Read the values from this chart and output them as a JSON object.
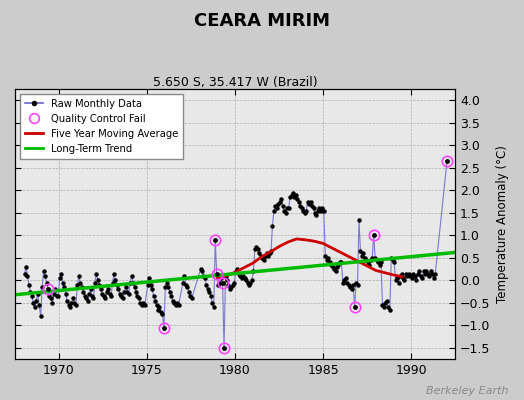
{
  "title": "CEARA MIRIM",
  "subtitle": "5.650 S, 35.417 W (Brazil)",
  "ylabel": "Temperature Anomaly (°C)",
  "watermark": "Berkeley Earth",
  "xlim": [
    1967.5,
    1992.5
  ],
  "ylim": [
    -1.75,
    4.25
  ],
  "yticks": [
    -1.5,
    -1.0,
    -0.5,
    0.0,
    0.5,
    1.0,
    1.5,
    2.0,
    2.5,
    3.0,
    3.5,
    4.0
  ],
  "xticks": [
    1970,
    1975,
    1980,
    1985,
    1990
  ],
  "bg_color": "#cccccc",
  "plot_bg": "#e8e8e8",
  "raw_color": "#6666cc",
  "raw_marker_color": "#000000",
  "ma_color": "#cc0000",
  "trend_color": "#00bb00",
  "qc_color": "#ff44ff",
  "raw_monthly": [
    [
      1968.042,
      0.15
    ],
    [
      1968.125,
      0.3
    ],
    [
      1968.208,
      0.1
    ],
    [
      1968.292,
      -0.1
    ],
    [
      1968.375,
      -0.25
    ],
    [
      1968.458,
      -0.35
    ],
    [
      1968.542,
      -0.5
    ],
    [
      1968.625,
      -0.6
    ],
    [
      1968.708,
      -0.45
    ],
    [
      1968.792,
      -0.3
    ],
    [
      1968.875,
      -0.55
    ],
    [
      1968.958,
      -0.8
    ],
    [
      1969.042,
      -0.15
    ],
    [
      1969.125,
      0.2
    ],
    [
      1969.208,
      0.1
    ],
    [
      1969.292,
      -0.05
    ],
    [
      1969.375,
      -0.2
    ],
    [
      1969.458,
      -0.35
    ],
    [
      1969.542,
      -0.4
    ],
    [
      1969.625,
      -0.5
    ],
    [
      1969.708,
      -0.3
    ],
    [
      1969.792,
      -0.2
    ],
    [
      1969.875,
      -0.35
    ],
    [
      1969.958,
      -0.35
    ],
    [
      1970.042,
      0.05
    ],
    [
      1970.125,
      0.15
    ],
    [
      1970.208,
      -0.05
    ],
    [
      1970.292,
      -0.15
    ],
    [
      1970.375,
      -0.3
    ],
    [
      1970.458,
      -0.45
    ],
    [
      1970.542,
      -0.55
    ],
    [
      1970.625,
      -0.6
    ],
    [
      1970.708,
      -0.5
    ],
    [
      1970.792,
      -0.4
    ],
    [
      1970.875,
      -0.5
    ],
    [
      1970.958,
      -0.55
    ],
    [
      1971.042,
      -0.1
    ],
    [
      1971.125,
      0.1
    ],
    [
      1971.208,
      -0.05
    ],
    [
      1971.292,
      -0.15
    ],
    [
      1971.375,
      -0.25
    ],
    [
      1971.458,
      -0.35
    ],
    [
      1971.542,
      -0.4
    ],
    [
      1971.625,
      -0.45
    ],
    [
      1971.708,
      -0.3
    ],
    [
      1971.792,
      -0.2
    ],
    [
      1971.875,
      -0.35
    ],
    [
      1971.958,
      -0.4
    ],
    [
      1972.042,
      -0.05
    ],
    [
      1972.125,
      0.15
    ],
    [
      1972.208,
      0.0
    ],
    [
      1972.292,
      -0.1
    ],
    [
      1972.375,
      -0.2
    ],
    [
      1972.458,
      -0.3
    ],
    [
      1972.542,
      -0.35
    ],
    [
      1972.625,
      -0.4
    ],
    [
      1972.708,
      -0.25
    ],
    [
      1972.792,
      -0.2
    ],
    [
      1972.875,
      -0.3
    ],
    [
      1972.958,
      -0.35
    ],
    [
      1973.042,
      -0.05
    ],
    [
      1973.125,
      0.15
    ],
    [
      1973.208,
      0.0
    ],
    [
      1973.292,
      -0.1
    ],
    [
      1973.375,
      -0.2
    ],
    [
      1973.458,
      -0.3
    ],
    [
      1973.542,
      -0.35
    ],
    [
      1973.625,
      -0.4
    ],
    [
      1973.708,
      -0.25
    ],
    [
      1973.792,
      -0.15
    ],
    [
      1973.875,
      -0.25
    ],
    [
      1973.958,
      -0.3
    ],
    [
      1974.042,
      -0.05
    ],
    [
      1974.125,
      0.1
    ],
    [
      1974.208,
      -0.05
    ],
    [
      1974.292,
      -0.15
    ],
    [
      1974.375,
      -0.25
    ],
    [
      1974.458,
      -0.35
    ],
    [
      1974.542,
      -0.4
    ],
    [
      1974.625,
      -0.5
    ],
    [
      1974.708,
      -0.55
    ],
    [
      1974.792,
      -0.5
    ],
    [
      1974.875,
      -0.55
    ],
    [
      1975.042,
      -0.1
    ],
    [
      1975.125,
      0.05
    ],
    [
      1975.208,
      -0.1
    ],
    [
      1975.292,
      -0.2
    ],
    [
      1975.375,
      -0.35
    ],
    [
      1975.458,
      -0.45
    ],
    [
      1975.542,
      -0.55
    ],
    [
      1975.625,
      -0.65
    ],
    [
      1975.708,
      -0.6
    ],
    [
      1975.792,
      -0.7
    ],
    [
      1975.875,
      -0.75
    ],
    [
      1975.958,
      -1.05
    ],
    [
      1976.042,
      -0.15
    ],
    [
      1976.125,
      -0.05
    ],
    [
      1976.208,
      -0.15
    ],
    [
      1976.292,
      -0.25
    ],
    [
      1976.375,
      -0.35
    ],
    [
      1976.458,
      -0.45
    ],
    [
      1976.542,
      -0.5
    ],
    [
      1976.625,
      -0.55
    ],
    [
      1976.708,
      -0.5
    ],
    [
      1976.792,
      -0.55
    ],
    [
      1977.042,
      -0.05
    ],
    [
      1977.125,
      0.1
    ],
    [
      1977.208,
      -0.1
    ],
    [
      1977.292,
      -0.15
    ],
    [
      1977.375,
      -0.25
    ],
    [
      1977.458,
      -0.35
    ],
    [
      1977.542,
      -0.4
    ],
    [
      1978.042,
      0.25
    ],
    [
      1978.125,
      0.2
    ],
    [
      1978.208,
      0.1
    ],
    [
      1978.292,
      0.05
    ],
    [
      1978.375,
      -0.1
    ],
    [
      1978.458,
      -0.2
    ],
    [
      1978.542,
      -0.25
    ],
    [
      1978.625,
      -0.35
    ],
    [
      1978.708,
      -0.5
    ],
    [
      1978.792,
      -0.6
    ],
    [
      1978.875,
      0.9
    ],
    [
      1978.958,
      0.15
    ],
    [
      1979.042,
      -0.1
    ],
    [
      1979.125,
      -0.05
    ],
    [
      1979.208,
      0.05
    ],
    [
      1979.292,
      -0.05
    ],
    [
      1979.375,
      -1.5
    ],
    [
      1979.458,
      0.1
    ],
    [
      1979.542,
      0.0
    ],
    [
      1979.625,
      -0.1
    ],
    [
      1979.708,
      -0.2
    ],
    [
      1979.792,
      -0.15
    ],
    [
      1979.875,
      -0.1
    ],
    [
      1979.958,
      -0.05
    ],
    [
      1980.042,
      0.2
    ],
    [
      1980.125,
      0.25
    ],
    [
      1980.208,
      0.15
    ],
    [
      1980.292,
      0.1
    ],
    [
      1980.375,
      0.05
    ],
    [
      1980.458,
      0.1
    ],
    [
      1980.542,
      0.05
    ],
    [
      1980.625,
      0.0
    ],
    [
      1980.708,
      -0.05
    ],
    [
      1980.792,
      -0.1
    ],
    [
      1980.875,
      -0.05
    ],
    [
      1980.958,
      0.0
    ],
    [
      1981.042,
      0.2
    ],
    [
      1981.125,
      0.7
    ],
    [
      1981.208,
      0.75
    ],
    [
      1981.292,
      0.7
    ],
    [
      1981.375,
      0.6
    ],
    [
      1981.458,
      0.55
    ],
    [
      1981.542,
      0.5
    ],
    [
      1981.625,
      0.45
    ],
    [
      1981.708,
      0.55
    ],
    [
      1981.792,
      0.6
    ],
    [
      1981.875,
      0.55
    ],
    [
      1981.958,
      0.6
    ],
    [
      1982.042,
      0.65
    ],
    [
      1982.125,
      1.2
    ],
    [
      1982.208,
      1.55
    ],
    [
      1982.292,
      1.65
    ],
    [
      1982.375,
      1.6
    ],
    [
      1982.458,
      1.7
    ],
    [
      1982.542,
      1.75
    ],
    [
      1982.625,
      1.8
    ],
    [
      1982.708,
      1.65
    ],
    [
      1982.792,
      1.55
    ],
    [
      1982.875,
      1.5
    ],
    [
      1982.958,
      1.6
    ],
    [
      1983.042,
      1.6
    ],
    [
      1983.125,
      1.85
    ],
    [
      1983.208,
      1.9
    ],
    [
      1983.292,
      1.95
    ],
    [
      1983.375,
      1.85
    ],
    [
      1983.458,
      1.9
    ],
    [
      1983.542,
      1.8
    ],
    [
      1983.625,
      1.75
    ],
    [
      1983.708,
      1.65
    ],
    [
      1983.792,
      1.6
    ],
    [
      1983.875,
      1.55
    ],
    [
      1983.958,
      1.5
    ],
    [
      1984.042,
      1.55
    ],
    [
      1984.125,
      1.75
    ],
    [
      1984.208,
      1.7
    ],
    [
      1984.292,
      1.75
    ],
    [
      1984.375,
      1.65
    ],
    [
      1984.458,
      1.6
    ],
    [
      1984.542,
      1.5
    ],
    [
      1984.625,
      1.45
    ],
    [
      1984.708,
      1.55
    ],
    [
      1984.792,
      1.6
    ],
    [
      1984.875,
      1.55
    ],
    [
      1984.958,
      1.6
    ],
    [
      1985.042,
      1.55
    ],
    [
      1985.125,
      0.55
    ],
    [
      1985.208,
      0.45
    ],
    [
      1985.292,
      0.5
    ],
    [
      1985.375,
      0.4
    ],
    [
      1985.458,
      0.35
    ],
    [
      1985.542,
      0.3
    ],
    [
      1985.625,
      0.25
    ],
    [
      1985.708,
      0.2
    ],
    [
      1985.792,
      0.3
    ],
    [
      1985.875,
      0.35
    ],
    [
      1985.958,
      0.4
    ],
    [
      1986.042,
      0.4
    ],
    [
      1986.125,
      -0.05
    ],
    [
      1986.208,
      0.0
    ],
    [
      1986.292,
      0.05
    ],
    [
      1986.375,
      -0.05
    ],
    [
      1986.458,
      -0.1
    ],
    [
      1986.542,
      -0.15
    ],
    [
      1986.625,
      -0.2
    ],
    [
      1986.708,
      -0.1
    ],
    [
      1986.792,
      -0.6
    ],
    [
      1986.875,
      -0.05
    ],
    [
      1986.958,
      -0.1
    ],
    [
      1987.042,
      1.35
    ],
    [
      1987.125,
      0.65
    ],
    [
      1987.208,
      0.55
    ],
    [
      1987.292,
      0.6
    ],
    [
      1987.375,
      0.5
    ],
    [
      1987.458,
      0.45
    ],
    [
      1987.542,
      0.4
    ],
    [
      1987.625,
      0.35
    ],
    [
      1987.708,
      0.45
    ],
    [
      1987.792,
      0.5
    ],
    [
      1987.875,
      1.0
    ],
    [
      1987.958,
      0.5
    ],
    [
      1988.042,
      0.45
    ],
    [
      1988.125,
      0.4
    ],
    [
      1988.208,
      0.35
    ],
    [
      1988.292,
      0.4
    ],
    [
      1988.375,
      -0.55
    ],
    [
      1988.458,
      -0.6
    ],
    [
      1988.542,
      -0.5
    ],
    [
      1988.625,
      -0.45
    ],
    [
      1988.708,
      -0.6
    ],
    [
      1988.792,
      -0.65
    ],
    [
      1988.875,
      0.5
    ],
    [
      1988.958,
      0.45
    ],
    [
      1989.042,
      0.4
    ],
    [
      1989.125,
      -0.0
    ],
    [
      1989.208,
      0.05
    ],
    [
      1989.292,
      -0.05
    ],
    [
      1989.375,
      0.1
    ],
    [
      1989.458,
      0.15
    ],
    [
      1989.542,
      0.05
    ],
    [
      1989.625,
      0.0
    ],
    [
      1989.708,
      0.15
    ],
    [
      1989.792,
      0.1
    ],
    [
      1989.875,
      0.15
    ],
    [
      1989.958,
      0.1
    ],
    [
      1990.042,
      0.05
    ],
    [
      1990.125,
      0.15
    ],
    [
      1990.208,
      0.1
    ],
    [
      1990.292,
      0.0
    ],
    [
      1990.375,
      0.15
    ],
    [
      1990.458,
      0.2
    ],
    [
      1990.542,
      0.1
    ],
    [
      1990.625,
      0.05
    ],
    [
      1990.708,
      0.2
    ],
    [
      1990.792,
      0.15
    ],
    [
      1990.875,
      0.2
    ],
    [
      1990.958,
      0.15
    ],
    [
      1991.042,
      0.1
    ],
    [
      1991.125,
      0.2
    ],
    [
      1991.208,
      0.15
    ],
    [
      1991.292,
      0.05
    ],
    [
      1991.375,
      0.15
    ],
    [
      1992.042,
      2.65
    ]
  ],
  "qc_fail": [
    [
      1969.375,
      -0.2
    ],
    [
      1975.958,
      -1.05
    ],
    [
      1978.875,
      0.9
    ],
    [
      1978.958,
      0.15
    ],
    [
      1979.292,
      -0.05
    ],
    [
      1979.375,
      -1.5
    ],
    [
      1986.792,
      -0.6
    ],
    [
      1987.875,
      1.0
    ],
    [
      1992.042,
      2.65
    ]
  ],
  "moving_avg": [
    [
      1979.0,
      0.05
    ],
    [
      1979.5,
      0.1
    ],
    [
      1980.0,
      0.18
    ],
    [
      1980.5,
      0.28
    ],
    [
      1981.0,
      0.38
    ],
    [
      1981.5,
      0.52
    ],
    [
      1982.0,
      0.63
    ],
    [
      1982.5,
      0.75
    ],
    [
      1983.0,
      0.85
    ],
    [
      1983.5,
      0.92
    ],
    [
      1984.0,
      0.9
    ],
    [
      1984.5,
      0.87
    ],
    [
      1985.0,
      0.82
    ],
    [
      1985.5,
      0.72
    ],
    [
      1986.0,
      0.62
    ],
    [
      1986.5,
      0.52
    ],
    [
      1987.0,
      0.42
    ],
    [
      1987.5,
      0.32
    ],
    [
      1988.0,
      0.22
    ],
    [
      1988.5,
      0.17
    ],
    [
      1989.0,
      0.12
    ],
    [
      1989.5,
      0.08
    ]
  ],
  "trend_x": [
    1967.5,
    1992.5
  ],
  "trend_y": [
    -0.32,
    0.62
  ]
}
